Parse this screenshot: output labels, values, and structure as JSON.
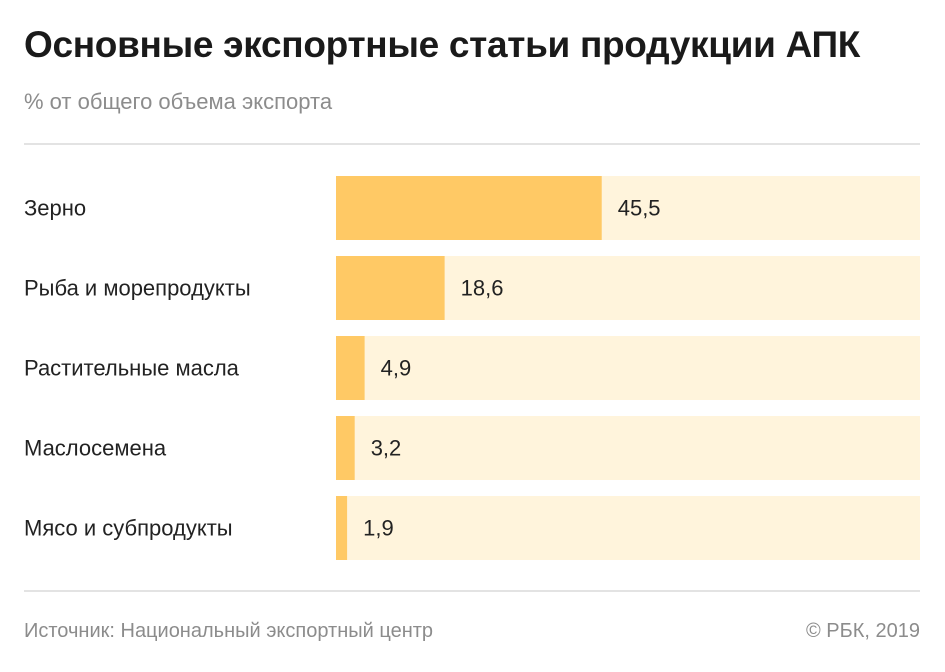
{
  "title": "Основные экспортные статьи продукции АПК",
  "subtitle": "% от общего объема экспорта",
  "footer": {
    "source": "Источник: Национальный экспортный центр",
    "copyright": "© РБК, 2019"
  },
  "colors": {
    "bar": "#ffc965",
    "track": "#fff4dc",
    "label": "#222222"
  },
  "chart_data": {
    "type": "bar",
    "orientation": "horizontal",
    "categories": [
      "Зерно",
      "Рыба и морепродукты",
      "Растительные масла",
      "Маслосемена",
      "Мясо и субпродукты"
    ],
    "values": [
      45.5,
      18.6,
      4.9,
      3.2,
      1.9
    ],
    "value_labels": [
      "45,5",
      "18,6",
      "4,9",
      "3,2",
      "1,9"
    ],
    "xlim": [
      0,
      100
    ],
    "grid": false,
    "legend": "none"
  }
}
